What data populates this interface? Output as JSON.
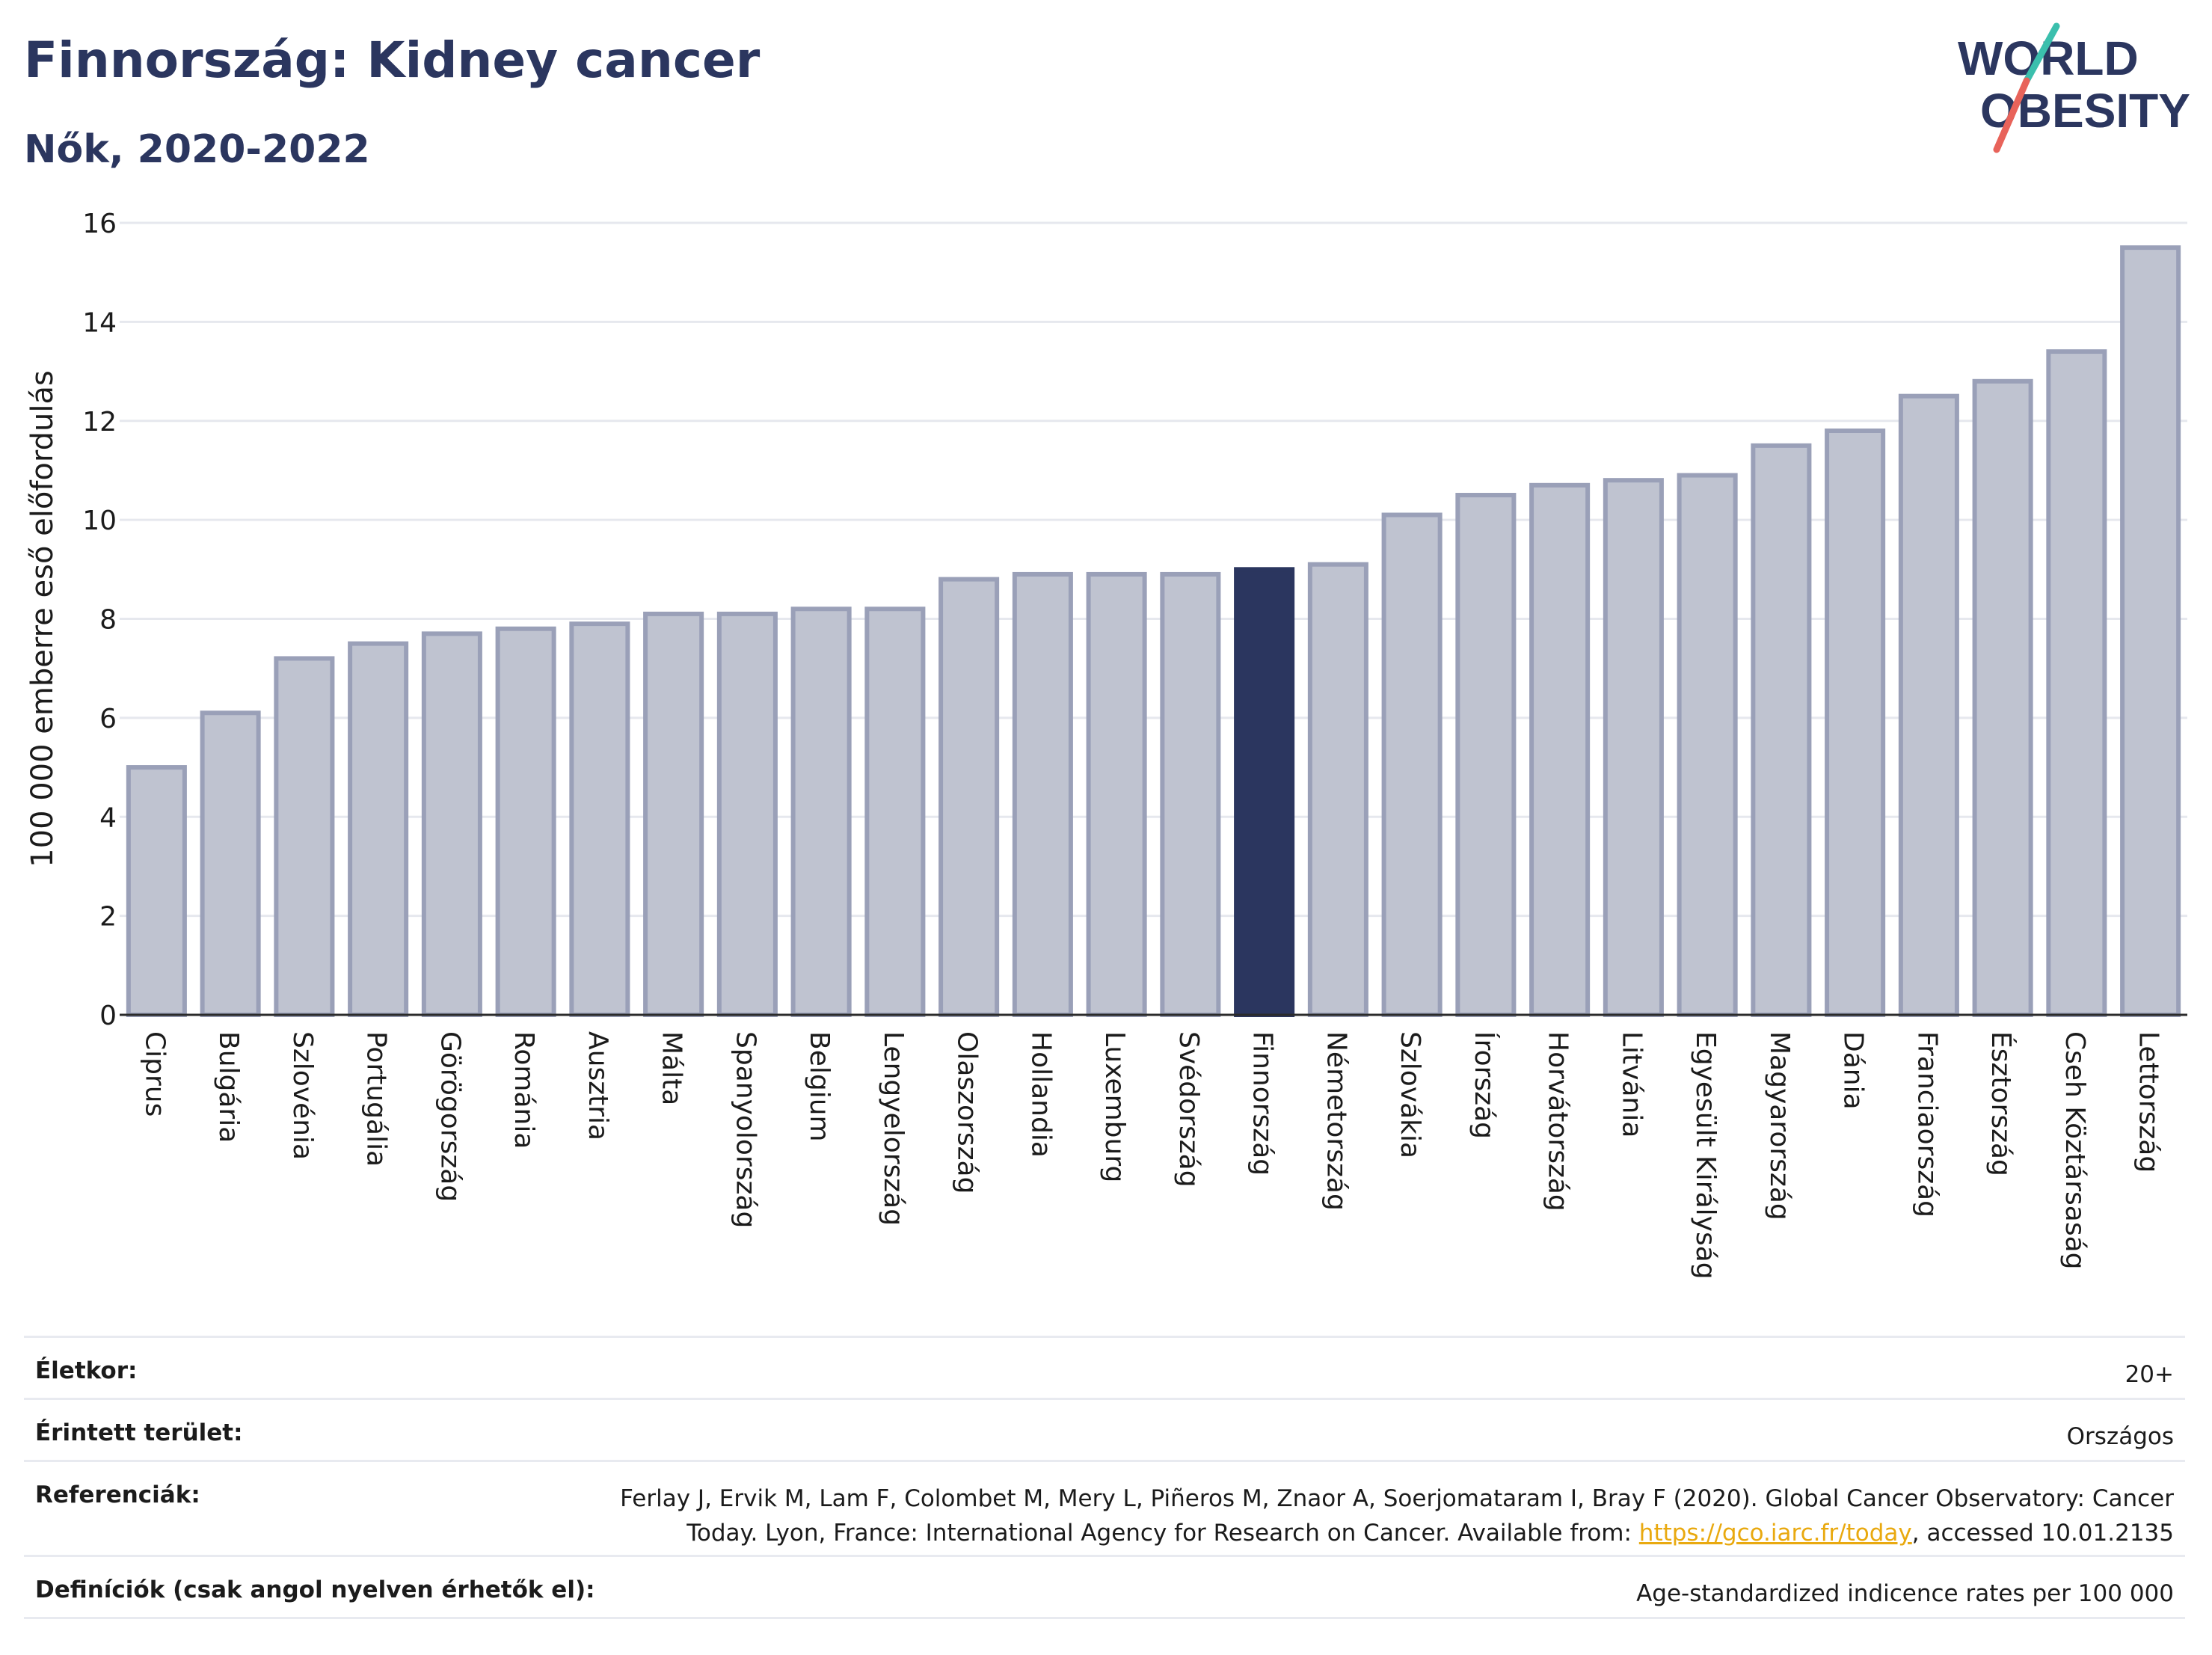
{
  "header": {
    "title": "Finnország: Kidney cancer",
    "subtitle": "Nők, 2020-2022"
  },
  "logo": {
    "line1": "WORLD",
    "line2": "OBESITY",
    "colors": {
      "text": "#2b365f",
      "slash_teal": "#3bbfad",
      "slash_red": "#e8635a"
    }
  },
  "colors": {
    "bar": "#bfc3d0",
    "bar_border": "#9aa0b8",
    "highlight": "#2b365f",
    "grid": "#e6e8ee",
    "axis": "#2b2b2b"
  },
  "chart_data": {
    "type": "bar",
    "ylabel": "100 000 emberre eső előfordulás",
    "ylim": [
      0,
      16
    ],
    "yticks": [
      0,
      2,
      4,
      6,
      8,
      10,
      12,
      14,
      16
    ],
    "grid": true,
    "highlight": "Finnország",
    "categories": [
      "Ciprus",
      "Bulgária",
      "Szlovénia",
      "Portugália",
      "Görögország",
      "Románia",
      "Ausztria",
      "Málta",
      "Spanyolország",
      "Belgium",
      "Lengyelország",
      "Olaszország",
      "Hollandia",
      "Luxemburg",
      "Svédország",
      "Finnország",
      "Németország",
      "Szlovákia",
      "Írország",
      "Horvátország",
      "Litvánia",
      "Egyesült Királyság",
      "Magyarország",
      "Dánia",
      "Franciaország",
      "Észtország",
      "Cseh Köztársaság",
      "Lettország"
    ],
    "values": [
      5.0,
      6.1,
      7.2,
      7.5,
      7.7,
      7.8,
      7.9,
      8.1,
      8.1,
      8.2,
      8.2,
      8.8,
      8.9,
      8.9,
      8.9,
      9.0,
      9.1,
      10.1,
      10.5,
      10.7,
      10.8,
      10.9,
      11.5,
      11.8,
      12.5,
      12.8,
      13.4,
      15.5
    ]
  },
  "info": {
    "age_label": "Életkor:",
    "age_value": "20+",
    "area_label": "Érintett terület:",
    "area_value": "Országos",
    "ref_label": "Referenciák:",
    "ref_text_1": "Ferlay J, Ervik M, Lam F, Colombet M, Mery L, Piñeros M, Znaor A, Soerjomataram I, Bray F (2020). Global Cancer Observatory: Cancer Today. Lyon, France: International Agency for Research on Cancer. Available from: ",
    "ref_link": "https://gco.iarc.fr/today",
    "ref_text_2": ", accessed 10.01.2135",
    "def_label": "Definíciók (csak angol nyelven érhetők el):",
    "def_value": "Age-standardized indicence rates per 100 000"
  }
}
